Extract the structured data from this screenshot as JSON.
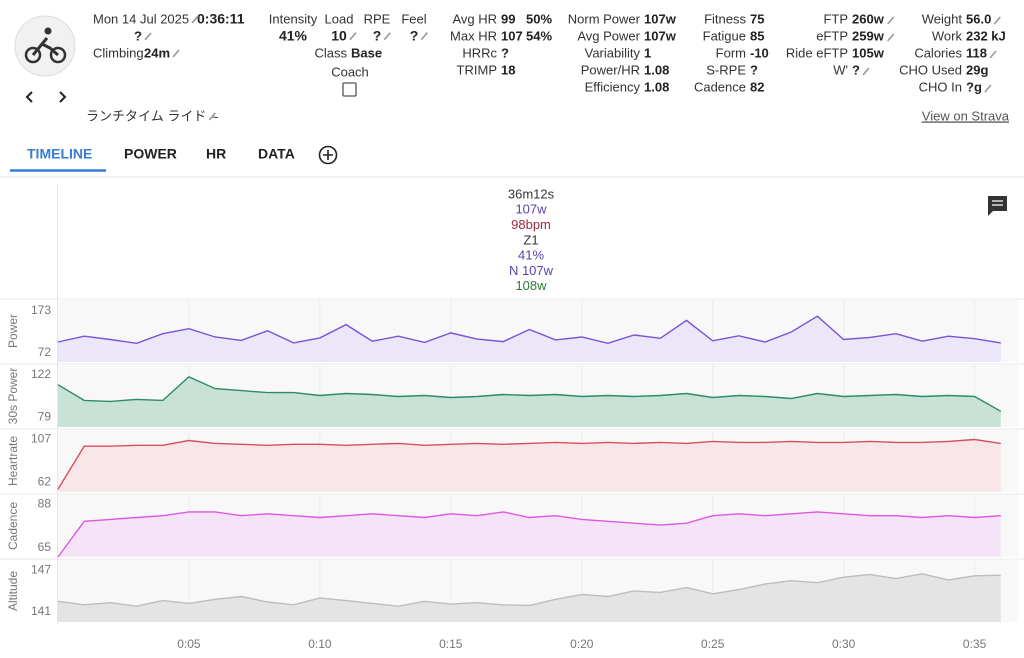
{
  "header": {
    "date": "Mon 14 Jul 2025",
    "duration": "0:36:11",
    "rpe_note": "?",
    "climbing_label": "Climbing",
    "climbing": "24m",
    "intensity_label": "Intensity",
    "intensity": "41%",
    "load_label": "Load",
    "load": "10",
    "rpe_label": "RPE",
    "rpe": "?",
    "feel_label": "Feel",
    "feel": "?",
    "class_label": "Class",
    "class": "Base",
    "coach_label": "Coach",
    "name": "ランチタイム ライド",
    "name_suffix": "~",
    "strava": "View on Strava"
  },
  "metrics": [
    [
      {
        "label": "Avg HR",
        "value": "99",
        "extra": "50%"
      },
      {
        "label": "Max HR",
        "value": "107",
        "extra": "54%"
      },
      {
        "label": "HRRc",
        "value": "?"
      },
      {
        "label": "TRIMP",
        "value": "18"
      }
    ],
    [
      {
        "label": "Norm Power",
        "value": "107w"
      },
      {
        "label": "Avg Power",
        "value": "107w"
      },
      {
        "label": "Variability",
        "value": "1"
      },
      {
        "label": "Power/HR",
        "value": "1.08"
      },
      {
        "label": "Efficiency",
        "value": "1.08"
      }
    ],
    [
      {
        "label": "Fitness",
        "value": "75"
      },
      {
        "label": "Fatigue",
        "value": "85"
      },
      {
        "label": "Form",
        "value": "-10"
      },
      {
        "label": "S-RPE",
        "value": "?"
      },
      {
        "label": "Cadence",
        "value": "82"
      }
    ],
    [
      {
        "label": "FTP",
        "value": "260w",
        "editable": true
      },
      {
        "label": "eFTP",
        "value": "259w",
        "editable": true
      },
      {
        "label": "Ride eFTP",
        "value": "105w"
      },
      {
        "label": "W'",
        "value": "?",
        "editable": true
      }
    ],
    [
      {
        "label": "Weight",
        "value": "56.0",
        "editable": true
      },
      {
        "label": "Work",
        "value": "232 kJ"
      },
      {
        "label": "Calories",
        "value": "118",
        "editable": true
      },
      {
        "label": "CHO Used",
        "value": "29g"
      },
      {
        "label": "CHO In",
        "value": "?g",
        "editable": true
      }
    ]
  ],
  "tabs": [
    "TIMELINE",
    "POWER",
    "HR",
    "DATA"
  ],
  "tooltip": [
    {
      "text": "36m12s",
      "color": "#333333"
    },
    {
      "text": "107w",
      "color": "#5b3fb0"
    },
    {
      "text": "98bpm",
      "color": "#a0283c"
    },
    {
      "text": "Z1",
      "color": "#333333"
    },
    {
      "text": "41%",
      "color": "#5b3fb0"
    },
    {
      "text": "N 107w",
      "color": "#5b3fb0"
    },
    {
      "text": "108w",
      "color": "#2e7d32"
    }
  ],
  "chart_data": [
    {
      "type": "area",
      "ylabel": "Power",
      "color": "#7b52d6",
      "fill": "#ebe6f8",
      "xlim": [
        0,
        36.2
      ],
      "ylim": [
        50,
        199
      ],
      "yticks": [
        72,
        173
      ],
      "x": [
        0,
        1,
        2,
        3,
        4,
        5,
        6,
        7,
        8,
        9,
        10,
        11,
        12,
        13,
        14,
        15,
        16,
        17,
        18,
        19,
        20,
        21,
        22,
        23,
        24,
        25,
        26,
        27,
        28,
        29,
        30,
        31,
        32,
        33,
        34,
        35,
        36
      ],
      "values": [
        98,
        112,
        104,
        95,
        118,
        130,
        110,
        102,
        125,
        96,
        108,
        140,
        100,
        112,
        97,
        120,
        105,
        99,
        128,
        103,
        110,
        95,
        115,
        107,
        150,
        101,
        113,
        98,
        122,
        160,
        104,
        109,
        118,
        100,
        112,
        106,
        96
      ]
    },
    {
      "type": "area",
      "ylabel": "30s Power",
      "color": "#2e8b6a",
      "fill": "#c8e3d5",
      "xlim": [
        0,
        36.2
      ],
      "ylim": [
        69,
        132
      ],
      "yticks": [
        79,
        122
      ],
      "x": [
        0,
        1,
        2,
        3,
        4,
        5,
        6,
        7,
        8,
        9,
        10,
        11,
        12,
        13,
        14,
        15,
        16,
        17,
        18,
        19,
        20,
        21,
        22,
        23,
        24,
        25,
        26,
        27,
        28,
        29,
        30,
        31,
        32,
        33,
        34,
        35,
        36
      ],
      "values": [
        112,
        96,
        95,
        97,
        96,
        120,
        108,
        106,
        104,
        104,
        101,
        103,
        102,
        100,
        101,
        99,
        100,
        102,
        101,
        102,
        100,
        101,
        100,
        101,
        103,
        99,
        101,
        100,
        98,
        103,
        100,
        101,
        102,
        100,
        101,
        100,
        85
      ]
    },
    {
      "type": "area",
      "ylabel": "Heartrate",
      "color": "#d6505c",
      "fill": "#f9e6e8",
      "xlim": [
        0,
        36.2
      ],
      "ylim": [
        52,
        117
      ],
      "yticks": [
        62,
        107
      ],
      "x": [
        0,
        1,
        2,
        3,
        4,
        5,
        6,
        7,
        8,
        9,
        10,
        11,
        12,
        13,
        14,
        15,
        16,
        17,
        18,
        19,
        20,
        21,
        22,
        23,
        24,
        25,
        26,
        27,
        28,
        29,
        30,
        31,
        32,
        33,
        34,
        35,
        36
      ],
      "values": [
        55,
        100,
        100,
        101,
        101,
        106,
        103,
        102,
        101,
        102,
        102,
        101,
        102,
        103,
        101,
        102,
        103,
        102,
        103,
        104,
        103,
        104,
        103,
        104,
        103,
        105,
        104,
        104,
        105,
        104,
        104,
        105,
        104,
        104,
        105,
        107,
        103
      ]
    },
    {
      "type": "area",
      "ylabel": "Cadence",
      "color": "#e056e6",
      "fill": "#f5e4f7",
      "xlim": [
        0,
        36.2
      ],
      "ylim": [
        60,
        93
      ],
      "yticks": [
        65,
        88
      ],
      "x": [
        0,
        1,
        2,
        3,
        4,
        5,
        6,
        7,
        8,
        9,
        10,
        11,
        12,
        13,
        14,
        15,
        16,
        17,
        18,
        19,
        20,
        21,
        22,
        23,
        24,
        25,
        26,
        27,
        28,
        29,
        30,
        31,
        32,
        33,
        34,
        35,
        36
      ],
      "values": [
        60,
        79,
        80,
        81,
        82,
        84,
        84,
        82,
        83,
        82,
        81,
        82,
        83,
        82,
        81,
        83,
        82,
        84,
        81,
        82,
        80,
        79,
        78,
        77,
        78,
        82,
        83,
        82,
        83,
        84,
        83,
        82,
        82,
        81,
        82,
        81,
        82
      ]
    },
    {
      "type": "area",
      "ylabel": "Altitude",
      "color": "#bdbdbd",
      "fill": "#e4e4e4",
      "xlim": [
        0,
        36.2
      ],
      "ylim": [
        139.5,
        148.5
      ],
      "yticks": [
        141,
        147
      ],
      "xticks": [
        {
          "value": 5,
          "label": "0:05"
        },
        {
          "value": 10,
          "label": "0:10"
        },
        {
          "value": 15,
          "label": "0:15"
        },
        {
          "value": 20,
          "label": "0:20"
        },
        {
          "value": 25,
          "label": "0:25"
        },
        {
          "value": 30,
          "label": "0:30"
        },
        {
          "value": 35,
          "label": "0:35"
        }
      ],
      "x": [
        0,
        1,
        2,
        3,
        4,
        5,
        6,
        7,
        8,
        9,
        10,
        11,
        12,
        13,
        14,
        15,
        16,
        17,
        18,
        19,
        20,
        21,
        22,
        23,
        24,
        25,
        26,
        27,
        28,
        29,
        30,
        31,
        32,
        33,
        34,
        35,
        36
      ],
      "values": [
        142.5,
        142,
        142.3,
        141.8,
        142.6,
        142.2,
        142.8,
        143.2,
        142.4,
        142,
        143,
        142.6,
        142.2,
        141.8,
        142.5,
        142.1,
        142.3,
        142,
        141.9,
        142.8,
        143.5,
        143.2,
        144,
        143.8,
        144.5,
        143.6,
        144.2,
        145,
        145.5,
        145.2,
        146,
        146.4,
        145.8,
        146.5,
        145.6,
        146.2,
        146.3
      ]
    }
  ]
}
